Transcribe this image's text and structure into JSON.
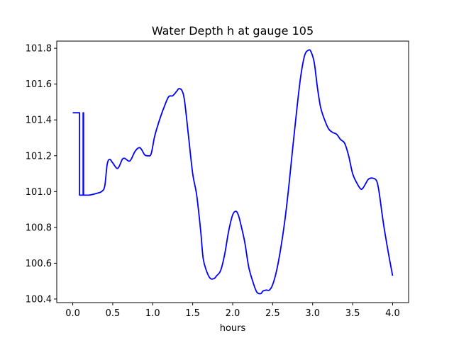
{
  "chart_data": {
    "type": "line",
    "title": "Water Depth h at gauge 105",
    "xlabel": "hours",
    "ylabel": "",
    "xlim": [
      -0.2,
      4.2
    ],
    "ylim": [
      100.38,
      101.84
    ],
    "xticks": [
      0.0,
      0.5,
      1.0,
      1.5,
      2.0,
      2.5,
      3.0,
      3.5,
      4.0
    ],
    "xtick_labels": [
      "0.0",
      "0.5",
      "1.0",
      "1.5",
      "2.0",
      "2.5",
      "3.0",
      "3.5",
      "4.0"
    ],
    "yticks": [
      100.4,
      100.6,
      100.8,
      101.0,
      101.2,
      101.4,
      101.6,
      101.8
    ],
    "ytick_labels": [
      "100.4",
      "100.6",
      "100.8",
      "101.0",
      "101.2",
      "101.4",
      "101.6",
      "101.8"
    ],
    "grid": false,
    "legend": "none",
    "series": [
      {
        "color": "#0000ff",
        "x": [
          0.0,
          0.085,
          0.085,
          0.13,
          0.13,
          0.135,
          0.135,
          0.2,
          0.3,
          0.36,
          0.4,
          0.43,
          0.46,
          0.5,
          0.55,
          0.58,
          0.62,
          0.65,
          0.7,
          0.73,
          0.78,
          0.83,
          0.86,
          0.9,
          0.94,
          0.98,
          1.02,
          1.05,
          1.1,
          1.15,
          1.2,
          1.25,
          1.3,
          1.33,
          1.37,
          1.4,
          1.45,
          1.5,
          1.55,
          1.6,
          1.63,
          1.67,
          1.72,
          1.77,
          1.8,
          1.85,
          1.9,
          1.95,
          2.0,
          2.04,
          2.07,
          2.1,
          2.15,
          2.2,
          2.25,
          2.3,
          2.35,
          2.38,
          2.42,
          2.46,
          2.5,
          2.55,
          2.6,
          2.65,
          2.7,
          2.75,
          2.8,
          2.85,
          2.9,
          2.95,
          2.98,
          3.02,
          3.06,
          3.1,
          3.15,
          3.2,
          3.25,
          3.3,
          3.35,
          3.4,
          3.45,
          3.5,
          3.55,
          3.6,
          3.63,
          3.67,
          3.7,
          3.75,
          3.8,
          3.83,
          3.87,
          3.9,
          3.95,
          4.0
        ],
        "y": [
          101.44,
          101.44,
          100.98,
          100.98,
          101.44,
          101.44,
          100.98,
          100.98,
          100.99,
          101.0,
          101.03,
          101.15,
          101.18,
          101.16,
          101.13,
          101.14,
          101.18,
          101.185,
          101.17,
          101.18,
          101.225,
          101.245,
          101.235,
          101.205,
          101.2,
          101.21,
          101.3,
          101.35,
          101.42,
          101.48,
          101.53,
          101.535,
          101.56,
          101.575,
          101.56,
          101.5,
          101.3,
          101.1,
          100.98,
          100.78,
          100.63,
          100.56,
          100.515,
          100.515,
          100.53,
          100.56,
          100.65,
          100.78,
          100.87,
          100.89,
          100.87,
          100.82,
          100.72,
          100.58,
          100.5,
          100.44,
          100.43,
          100.445,
          100.45,
          100.45,
          100.48,
          100.56,
          100.68,
          100.83,
          101.02,
          101.24,
          101.45,
          101.64,
          101.76,
          101.79,
          101.78,
          101.72,
          101.58,
          101.47,
          101.4,
          101.35,
          101.33,
          101.32,
          101.29,
          101.27,
          101.2,
          101.1,
          101.05,
          101.015,
          101.02,
          101.05,
          101.07,
          101.075,
          101.06,
          101.0,
          100.87,
          100.78,
          100.65,
          100.53
        ]
      }
    ]
  }
}
